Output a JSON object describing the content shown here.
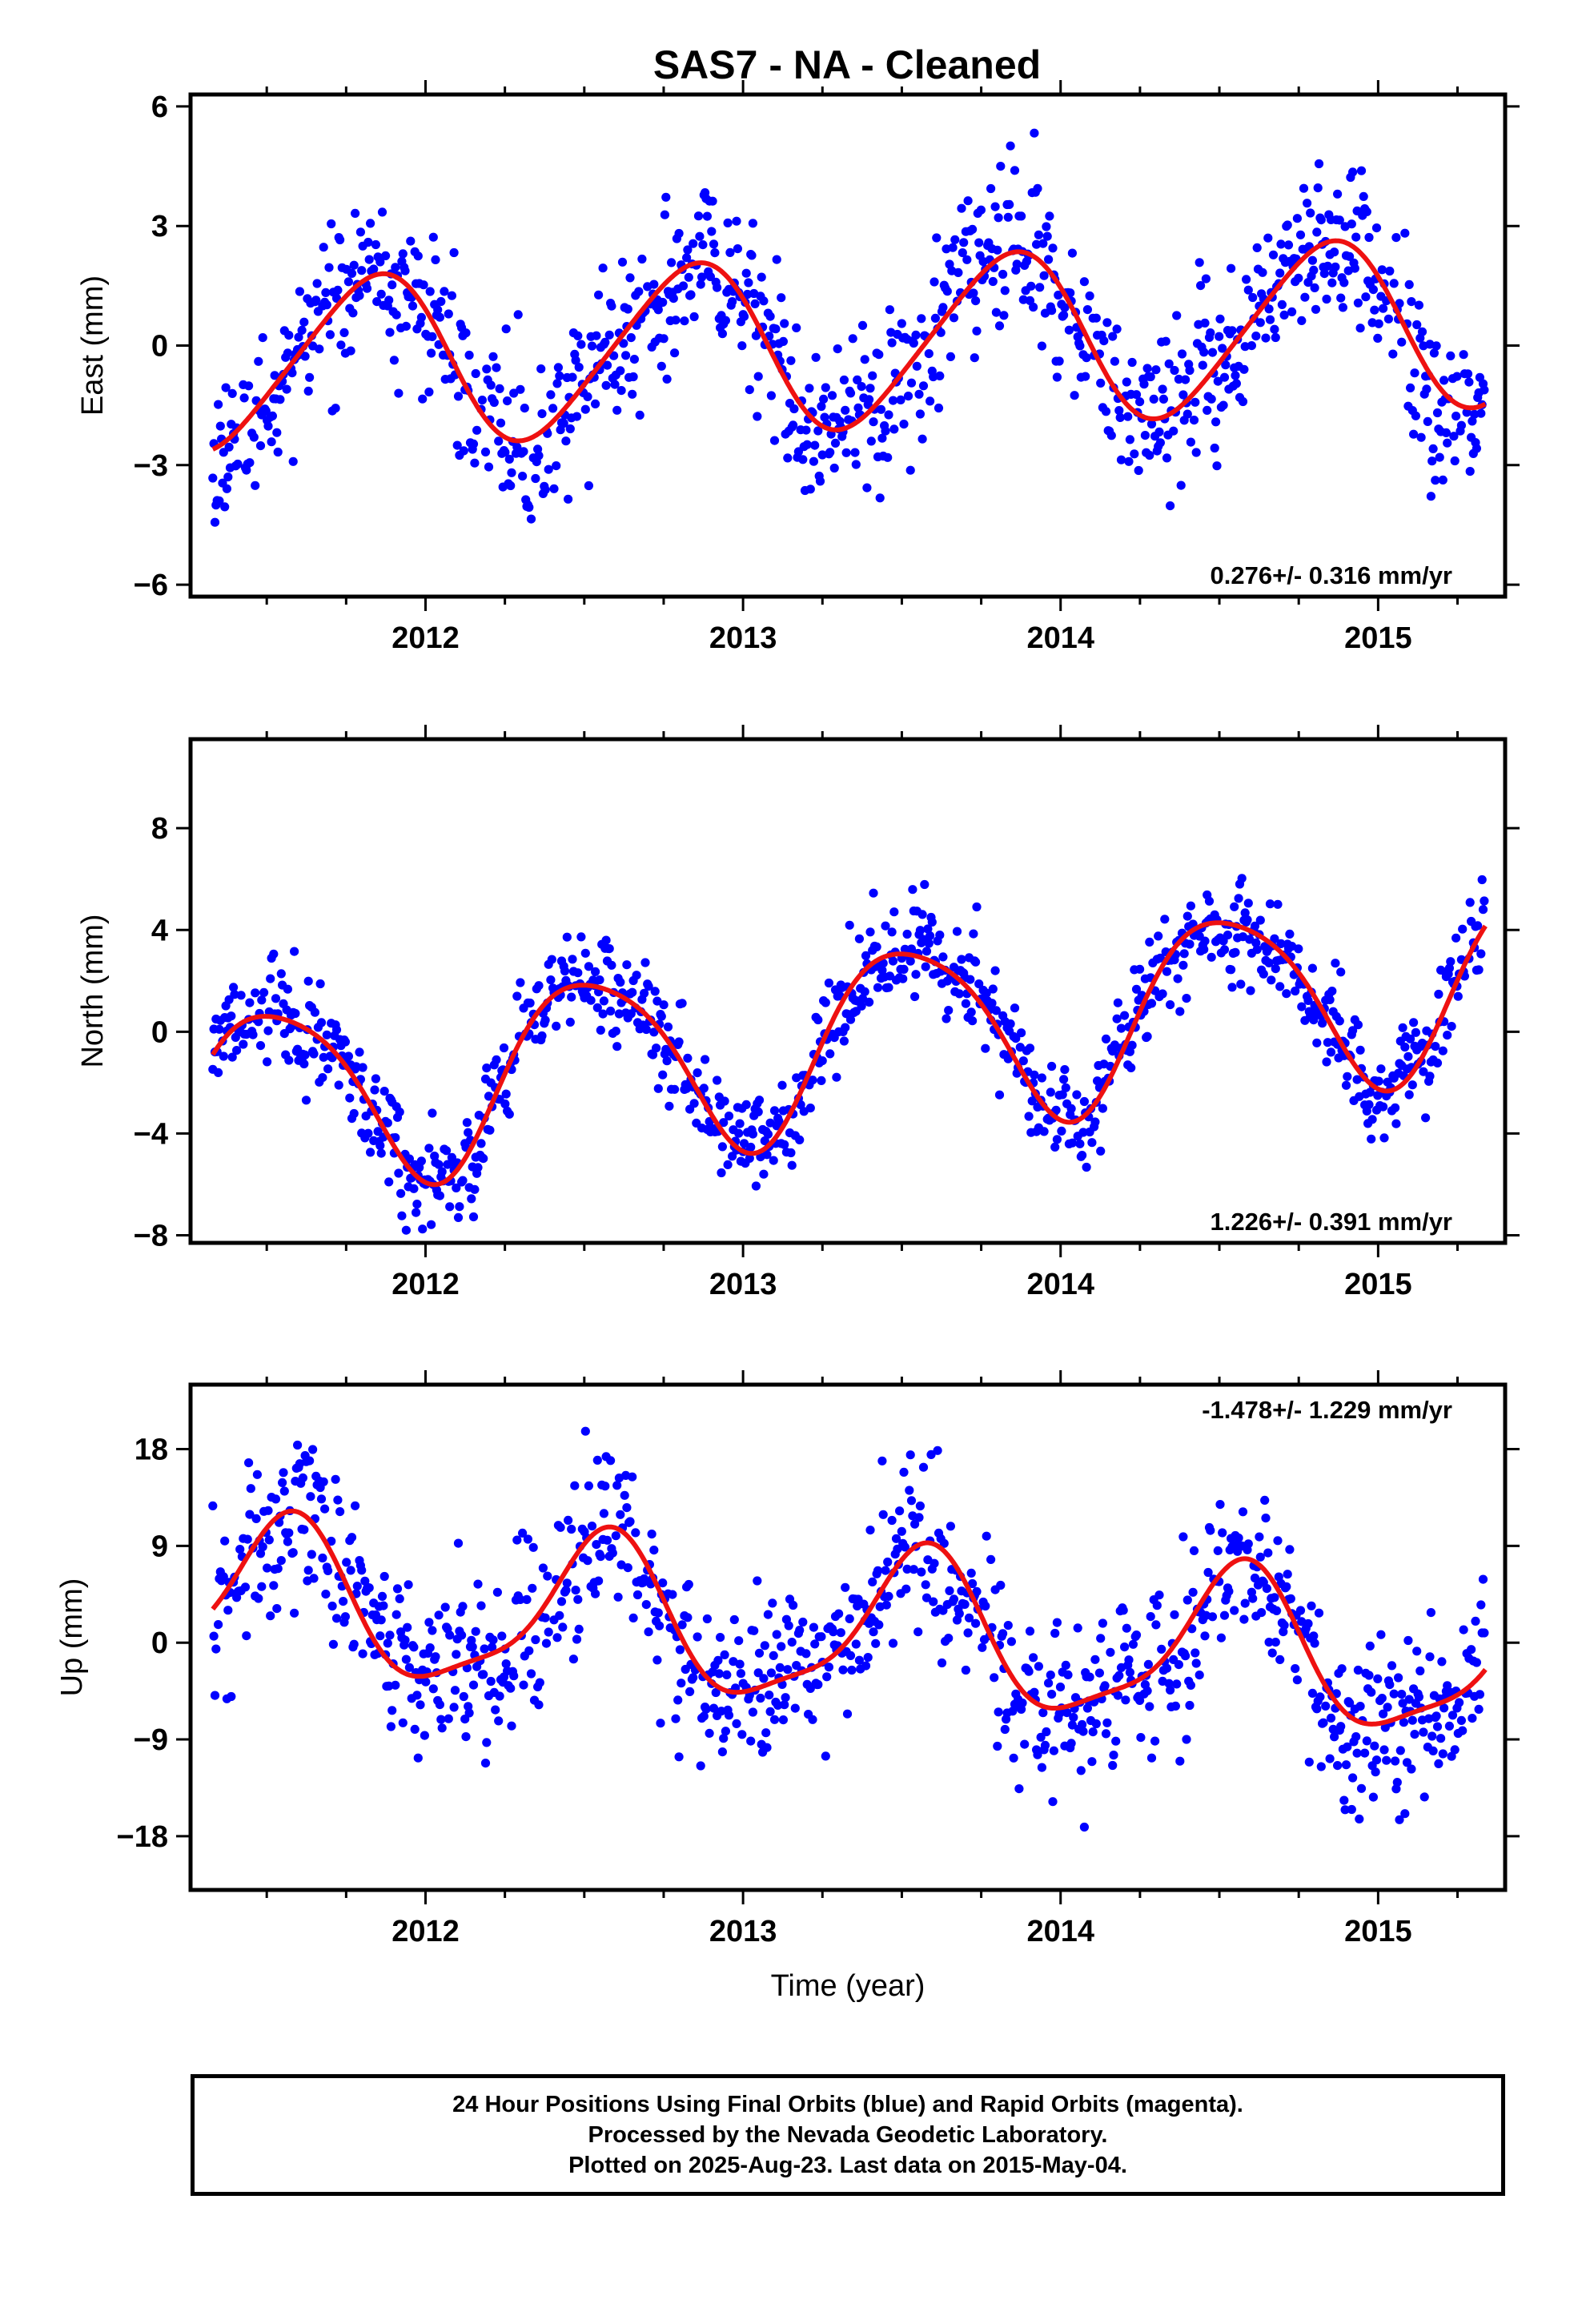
{
  "title": "SAS7  - NA - Cleaned",
  "colors": {
    "final_orbits": "#0000ff",
    "fit": "#ee1111",
    "axis": "#000000"
  },
  "footer": {
    "line1": "24 Hour Positions Using Final Orbits (blue) and Rapid Orbits (magenta).",
    "line2": "Processed by the Nevada Geodetic Laboratory.",
    "line3": "Plotted on 2025-Aug-23. Last data on 2015-May-04."
  },
  "chart_data": [
    {
      "type": "scatter",
      "ylabel": "East (mm)",
      "xlabel": "",
      "xlim": [
        2011.26,
        2015.4
      ],
      "ylim": [
        -6.3,
        6.3
      ],
      "xticks": [
        2012,
        2013,
        2014,
        2015
      ],
      "yticks": [
        -6,
        -3,
        0,
        3,
        6
      ],
      "rate": "0.276+/- 0.316 mm/yr",
      "rate_position": "bottom-right",
      "data_range": [
        2011.33,
        2015.34
      ],
      "model": {
        "offset": 0.05,
        "slope": 0.276,
        "t0": 2013.33,
        "a1": 2.1,
        "phase": -0.25,
        "a2": 0.25,
        "phase2": 0.0
      },
      "scatter_sd": 1.1,
      "seed": 11
    },
    {
      "type": "scatter",
      "ylabel": "North (mm)",
      "xlabel": "",
      "xlim": [
        2011.26,
        2015.4
      ],
      "ylim": [
        -8.3,
        11.5
      ],
      "xticks": [
        2012,
        2013,
        2014,
        2015
      ],
      "yticks": [
        -8,
        -4,
        0,
        4,
        8
      ],
      "rate": "1.226+/- 0.391 mm/yr",
      "rate_position": "bottom-right",
      "data_range": [
        2011.33,
        2015.34
      ],
      "model": {
        "offset": -0.3,
        "slope": 1.226,
        "t0": 2013.33,
        "a1": 3.6,
        "phase": 0.06,
        "a2": 0.55,
        "phase2": 0.3
      },
      "scatter_sd": 1.05,
      "seed": 23
    },
    {
      "type": "scatter",
      "ylabel": "Up (mm)",
      "xlabel": "Time (year)",
      "xlim": [
        2011.26,
        2015.4
      ],
      "ylim": [
        -23,
        24
      ],
      "xticks": [
        2012,
        2013,
        2014,
        2015
      ],
      "yticks": [
        -18,
        -9,
        0,
        9,
        18
      ],
      "rate": "-1.478+/- 1.229 mm/yr",
      "rate_position": "top-right",
      "data_range": [
        2011.33,
        2015.34
      ],
      "model": {
        "offset": 1.0,
        "slope": -1.478,
        "t0": 2013.33,
        "a1": 7.0,
        "phase": 0.02,
        "a2": 1.8,
        "phase2": -0.3
      },
      "scatter_sd": 4.3,
      "seed": 37
    }
  ]
}
